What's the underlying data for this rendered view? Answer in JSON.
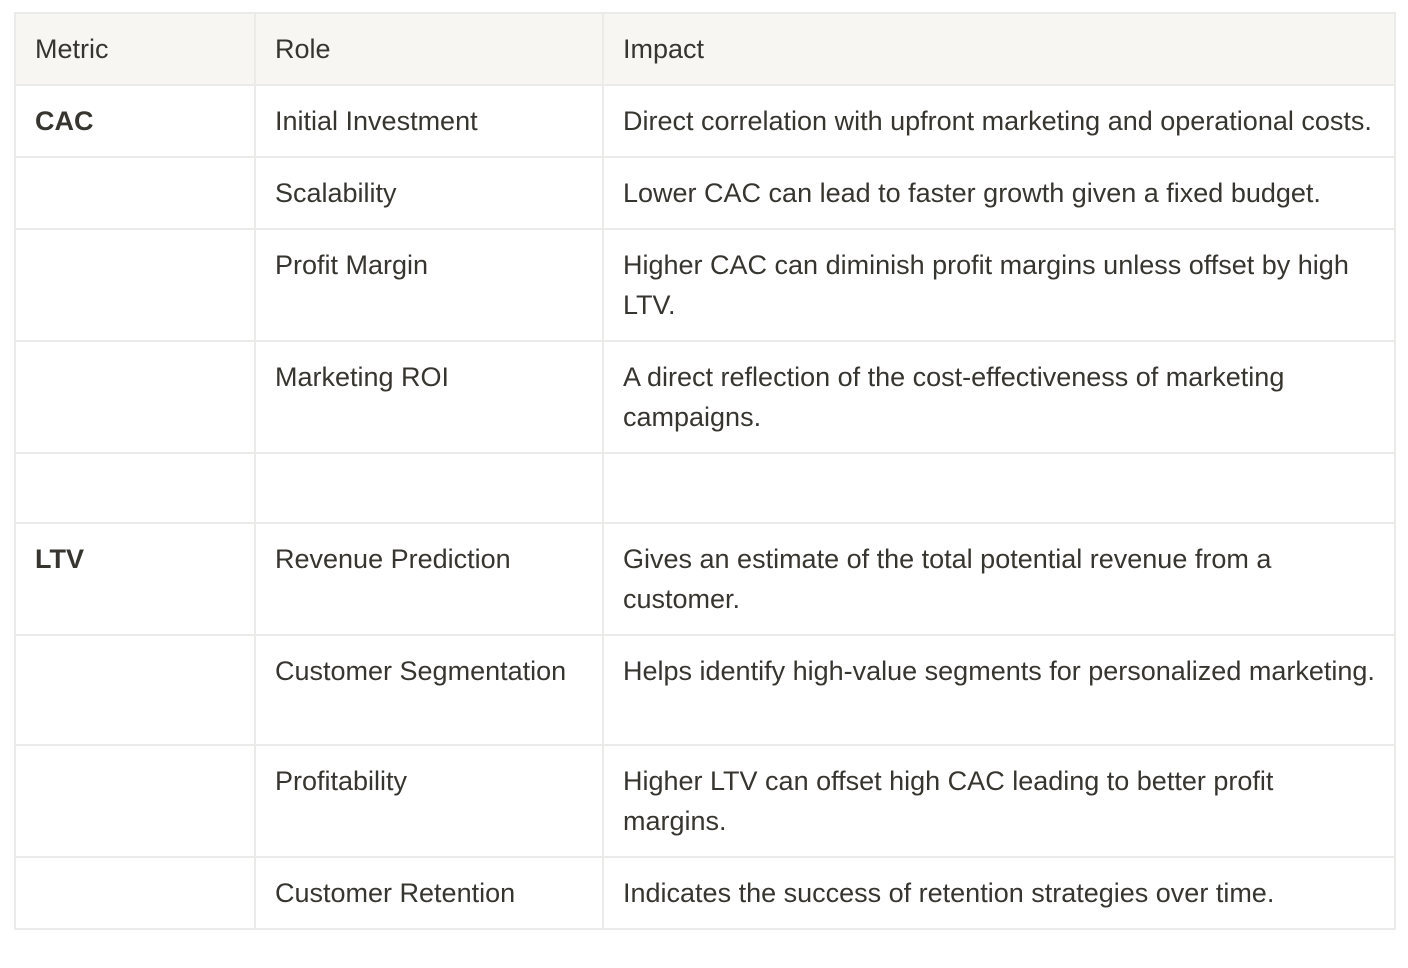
{
  "table": {
    "headers": [
      "Metric",
      "Role",
      "Impact"
    ],
    "rows": [
      {
        "metric": "CAC",
        "role": "Initial Investment",
        "impact": "Direct correlation with upfront marketing and operational costs."
      },
      {
        "metric": "",
        "role": "Scalability",
        "impact": "Lower CAC can lead to faster growth given a fixed budget."
      },
      {
        "metric": "",
        "role": "Profit Margin",
        "impact": "Higher CAC can diminish profit margins unless offset by high LTV."
      },
      {
        "metric": "",
        "role": "Marketing ROI",
        "impact": "A direct reflection of the cost-effectiveness of marketing campaigns."
      },
      {
        "metric": "",
        "role": "",
        "impact": ""
      },
      {
        "metric": "LTV",
        "role": "Revenue Prediction",
        "impact": "Gives an estimate of the total potential revenue from a customer."
      },
      {
        "metric": "",
        "role": "Customer Segmentation",
        "impact": "Helps identify high-value segments for personalized marketing."
      },
      {
        "metric": "",
        "role": "Profitability",
        "impact": "Higher LTV can offset high CAC leading to better profit margins."
      },
      {
        "metric": "",
        "role": "Customer Retention",
        "impact": "Indicates the success of retention strategies over time."
      }
    ]
  }
}
